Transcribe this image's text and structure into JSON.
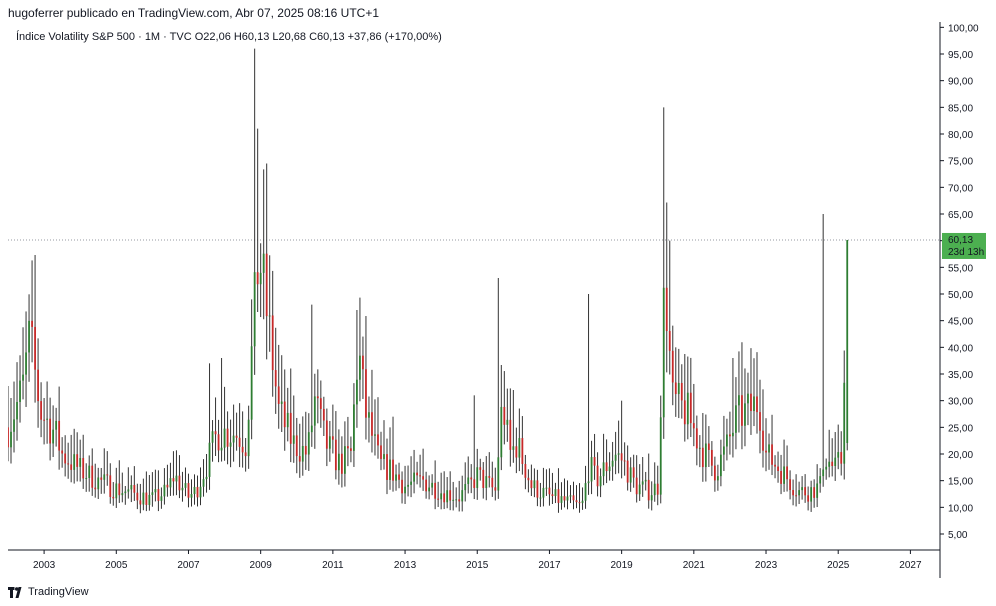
{
  "header": {
    "publish_text": "hugoferrer publicado en TradingView.com, Abr 07, 2025 08:16 UTC+1"
  },
  "legend": {
    "text": "Índice Volatility S&P 500 · 1M · TVC  O22,06  H60,13  L20,68  C60,13  +37,86 (+170,00%)"
  },
  "price_label": {
    "value": "60,13",
    "countdown": "23d 13h",
    "color": "#4caf50"
  },
  "footer": {
    "brand": "TradingView"
  },
  "colors": {
    "up": "#2e7d32",
    "down": "#c62828",
    "wick": "#333333",
    "axis": "#131722",
    "crosshair": "#9598a1"
  },
  "chart_data": {
    "type": "candlestick",
    "instrument": "Índice Volatility S&P 500",
    "interval": "1M",
    "exchange": "TVC",
    "last": {
      "open": 22.06,
      "high": 60.13,
      "low": 20.68,
      "close": 60.13,
      "change": 37.86,
      "change_pct": 170.0
    },
    "y_ticks": [
      "5,00",
      "10,00",
      "15,00",
      "20,00",
      "25,00",
      "30,00",
      "35,00",
      "40,00",
      "45,00",
      "50,00",
      "55,00",
      "60,00",
      "65,00",
      "70,00",
      "75,00",
      "80,00",
      "85,00",
      "90,00",
      "95,00",
      "100,00"
    ],
    "x_ticks": [
      "2003",
      "2005",
      "2007",
      "2009",
      "2011",
      "2013",
      "2015",
      "2017",
      "2019",
      "2021",
      "2023",
      "2025",
      "2027"
    ],
    "ylim": [
      2,
      101
    ],
    "price_line": 60.13,
    "anchors": [
      [
        2002.0,
        25
      ],
      [
        2002.4,
        32
      ],
      [
        2002.6,
        42
      ],
      [
        2002.9,
        28
      ],
      [
        2003.3,
        24
      ],
      [
        2003.5,
        20
      ],
      [
        2004.0,
        17
      ],
      [
        2004.5,
        15
      ],
      [
        2005.0,
        13.5
      ],
      [
        2005.5,
        12.5
      ],
      [
        2006.0,
        11.5
      ],
      [
        2006.4,
        13
      ],
      [
        2006.6,
        16
      ],
      [
        2007.0,
        12
      ],
      [
        2007.2,
        13
      ],
      [
        2007.5,
        18
      ],
      [
        2007.8,
        24
      ],
      [
        2008.3,
        24
      ],
      [
        2008.6,
        22
      ],
      [
        2008.8,
        44
      ],
      [
        2008.95,
        58
      ],
      [
        2009.2,
        45
      ],
      [
        2009.5,
        28
      ],
      [
        2009.9,
        22
      ],
      [
        2010.3,
        20
      ],
      [
        2010.5,
        30
      ],
      [
        2010.8,
        22
      ],
      [
        2011.2,
        18
      ],
      [
        2011.5,
        20
      ],
      [
        2011.7,
        40
      ],
      [
        2011.9,
        28
      ],
      [
        2012.3,
        18
      ],
      [
        2012.6,
        17
      ],
      [
        2013.0,
        14
      ],
      [
        2013.5,
        15
      ],
      [
        2014.0,
        13
      ],
      [
        2014.5,
        12
      ],
      [
        2014.8,
        14
      ],
      [
        2015.0,
        16
      ],
      [
        2015.5,
        13
      ],
      [
        2015.7,
        30
      ],
      [
        2015.9,
        20
      ],
      [
        2016.1,
        22
      ],
      [
        2016.5,
        14
      ],
      [
        2017.0,
        12
      ],
      [
        2017.5,
        11
      ],
      [
        2017.9,
        10
      ],
      [
        2018.1,
        18
      ],
      [
        2018.3,
        15
      ],
      [
        2018.8,
        20
      ],
      [
        2019.0,
        19
      ],
      [
        2019.4,
        14
      ],
      [
        2019.8,
        13
      ],
      [
        2020.0,
        14
      ],
      [
        2020.2,
        54
      ],
      [
        2020.4,
        30
      ],
      [
        2020.8,
        28
      ],
      [
        2021.2,
        21
      ],
      [
        2021.6,
        17
      ],
      [
        2021.9,
        21
      ],
      [
        2022.2,
        27
      ],
      [
        2022.5,
        28
      ],
      [
        2022.8,
        30
      ],
      [
        2023.0,
        20
      ],
      [
        2023.4,
        17
      ],
      [
        2023.9,
        13
      ],
      [
        2024.2,
        13
      ],
      [
        2024.5,
        14
      ],
      [
        2024.6,
        20
      ],
      [
        2024.9,
        17
      ],
      [
        2025.1,
        19
      ],
      [
        2025.25,
        60.13
      ]
    ],
    "spikes": [
      [
        2002.55,
        48
      ],
      [
        2008.8,
        96
      ],
      [
        2008.95,
        81
      ],
      [
        2009.05,
        68
      ],
      [
        2010.4,
        48
      ],
      [
        2011.65,
        47
      ],
      [
        2015.6,
        53
      ],
      [
        2018.1,
        50
      ],
      [
        2020.2,
        85
      ],
      [
        2020.3,
        60
      ],
      [
        2024.6,
        65
      ],
      [
        2025.25,
        60.13
      ],
      [
        2007.6,
        37
      ],
      [
        2007.95,
        38
      ],
      [
        2014.9,
        31
      ],
      [
        2016.0,
        32
      ],
      [
        2022.1,
        38
      ],
      [
        2020.5,
        40
      ],
      [
        2012.7,
        27
      ],
      [
        2013.5,
        21
      ],
      [
        2019.0,
        30
      ]
    ]
  }
}
